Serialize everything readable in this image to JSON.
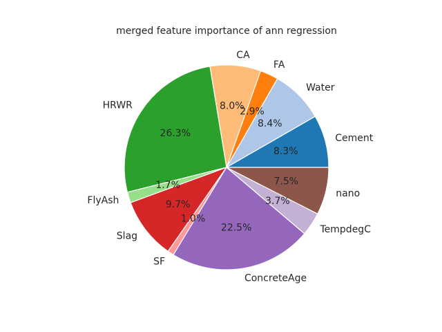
{
  "chart_data": {
    "type": "pie",
    "title": "merged feature importance of ann regression",
    "start_angle_deg": 0,
    "direction": "counterclockwise",
    "slices": [
      {
        "label": "Cement",
        "value": 8.3,
        "pct_label": "8.3%",
        "color": "#1f77b4"
      },
      {
        "label": "Water",
        "value": 8.4,
        "pct_label": "8.4%",
        "color": "#aec7e8"
      },
      {
        "label": "FA",
        "value": 2.9,
        "pct_label": "2.9%",
        "color": "#ff7f0e"
      },
      {
        "label": "CA",
        "value": 8.0,
        "pct_label": "8.0%",
        "color": "#ffbb78"
      },
      {
        "label": "HRWR",
        "value": 26.3,
        "pct_label": "26.3%",
        "color": "#2ca02c"
      },
      {
        "label": "FlyAsh",
        "value": 1.7,
        "pct_label": "1.7%",
        "color": "#98df8a"
      },
      {
        "label": "Slag",
        "value": 9.7,
        "pct_label": "9.7%",
        "color": "#d62728"
      },
      {
        "label": "SF",
        "value": 1.0,
        "pct_label": "1.0%",
        "color": "#ff9896"
      },
      {
        "label": "ConcreteAge",
        "value": 22.5,
        "pct_label": "22.5%",
        "color": "#9467bd"
      },
      {
        "label": "TempdegC",
        "value": 3.7,
        "pct_label": "3.7%",
        "color": "#c5b0d5"
      },
      {
        "label": "nano",
        "value": 7.5,
        "pct_label": "7.5%",
        "color": "#8c564b"
      }
    ]
  }
}
